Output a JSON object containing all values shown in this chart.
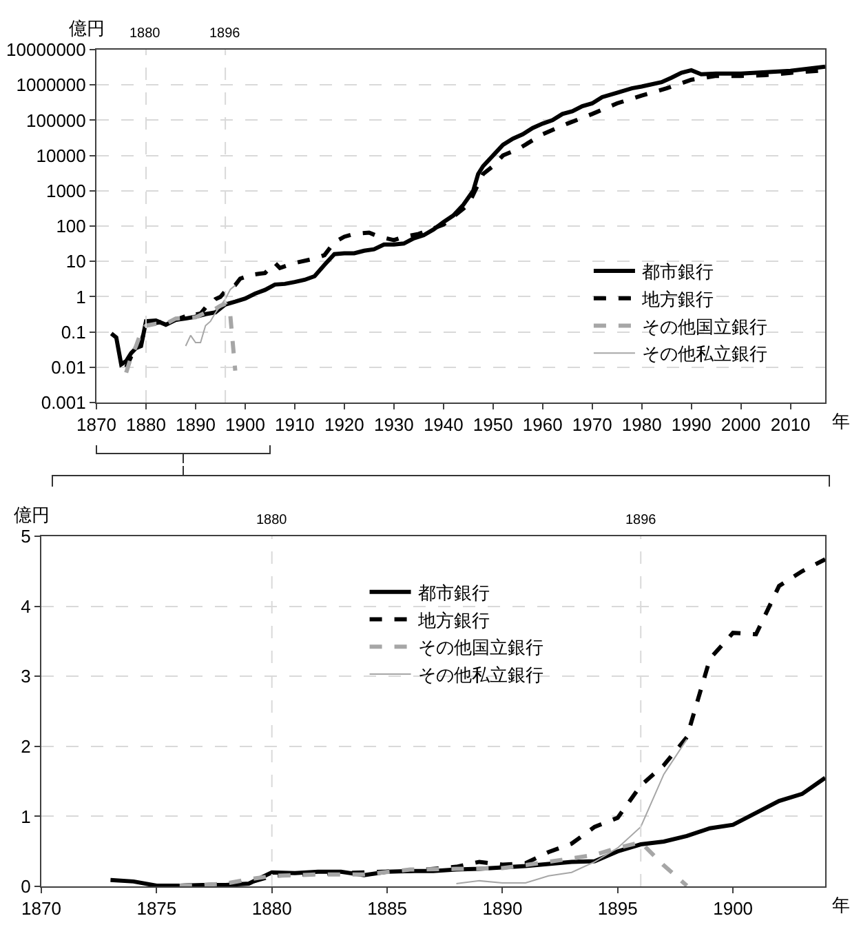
{
  "chart_data": [
    {
      "type": "line",
      "xlabel": "年",
      "ylabel": "億円",
      "log": "y",
      "grid": "y",
      "legend": "bottom right",
      "xlim": [
        1870,
        2017
      ],
      "ylim": [
        0.001,
        10000000
      ],
      "xticks": [
        1870,
        1880,
        1890,
        1900,
        1910,
        1920,
        1930,
        1940,
        1950,
        1960,
        1970,
        1980,
        1990,
        2000,
        2010
      ],
      "yticks": [
        0.001,
        0.01,
        0.1,
        1,
        10,
        100,
        1000,
        10000,
        100000,
        1000000,
        10000000
      ],
      "ref_lines": [
        {
          "axis": "x",
          "value": 1880,
          "label": "1880",
          "color": "#d9d9d9",
          "line_style": "dashed"
        },
        {
          "axis": "x",
          "value": 1896,
          "label": "1896",
          "color": "#d9d9d9",
          "line_style": "dashed"
        }
      ],
      "series": [
        {
          "name": "都市銀行",
          "color": "#000000",
          "line_style": "solid",
          "x": [
            1873,
            1874,
            1875,
            1876,
            1877,
            1878,
            1879,
            1880,
            1882,
            1884,
            1886,
            1888,
            1890,
            1892,
            1894,
            1896,
            1898,
            1900,
            1902,
            1904,
            1906,
            1908,
            1910,
            1912,
            1914,
            1916,
            1918,
            1920,
            1922,
            1924,
            1926,
            1928,
            1930,
            1932,
            1934,
            1936,
            1938,
            1940,
            1942,
            1944,
            1946,
            1947,
            1948,
            1950,
            1952,
            1954,
            1956,
            1958,
            1960,
            1962,
            1964,
            1966,
            1968,
            1970,
            1972,
            1975,
            1978,
            1980,
            1984,
            1986,
            1988,
            1990,
            1992,
            1995,
            2000,
            2005,
            2010,
            2017
          ],
          "values": [
            0.09,
            0.07,
            0.012,
            0.015,
            0.025,
            0.035,
            0.04,
            0.2,
            0.21,
            0.16,
            0.22,
            0.24,
            0.27,
            0.32,
            0.36,
            0.6,
            0.72,
            0.88,
            1.22,
            1.55,
            2.2,
            2.3,
            2.6,
            3,
            3.8,
            8,
            16,
            17,
            17,
            20,
            22,
            30,
            30,
            32,
            45,
            55,
            80,
            130,
            200,
            400,
            1000,
            3000,
            5000,
            10000,
            20000,
            30000,
            40000,
            60000,
            80000,
            100000,
            150000,
            180000,
            250000,
            300000,
            450000,
            600000,
            800000,
            900000,
            1200000,
            1600000,
            2200000,
            2600000,
            2000000,
            2100000,
            2100000,
            2300000,
            2500000,
            3300000
          ]
        },
        {
          "name": "地方銀行",
          "color": "#000000",
          "line_style": "dashed",
          "x": [
            1876,
            1877,
            1878,
            1879,
            1880,
            1882,
            1884,
            1886,
            1888,
            1889,
            1890,
            1891,
            1892,
            1893,
            1894,
            1895,
            1896,
            1897,
            1898,
            1899,
            1900,
            1901,
            1902,
            1903,
            1904,
            1906,
            1907,
            1910,
            1914,
            1916,
            1918,
            1920,
            1922,
            1925,
            1927,
            1930,
            1932,
            1935,
            1940,
            1945,
            1948,
            1950,
            1952,
            1955,
            1960,
            1965,
            1970,
            1975,
            1980,
            1985,
            1990,
            1995,
            2000,
            2005,
            2010,
            2017
          ],
          "values": [
            0.01,
            0.02,
            0.03,
            0.05,
            0.15,
            0.18,
            0.2,
            0.22,
            0.28,
            0.35,
            0.31,
            0.33,
            0.49,
            0.61,
            0.85,
            0.98,
            1.44,
            1.73,
            2.13,
            3.25,
            3.62,
            3.6,
            4.29,
            4.5,
            4.67,
            9,
            6.5,
            9,
            12,
            15,
            35,
            50,
            60,
            65,
            50,
            40,
            50,
            60,
            110,
            400,
            3000,
            5000,
            10000,
            15000,
            40000,
            80000,
            150000,
            300000,
            500000,
            800000,
            1400000,
            1800000,
            1800000,
            1900000,
            2200000,
            2600000
          ]
        },
        {
          "name": "その他国立銀行",
          "color": "#a6a6a6",
          "line_style": "dashed",
          "x": [
            1876,
            1877,
            1878,
            1879,
            1880,
            1882,
            1884,
            1886,
            1888,
            1890,
            1892,
            1894,
            1895,
            1896,
            1897,
            1898
          ],
          "values": [
            0.007,
            0.02,
            0.04,
            0.1,
            0.15,
            0.17,
            0.17,
            0.24,
            0.25,
            0.26,
            0.35,
            0.45,
            0.55,
            0.63,
            0.3,
            0.008
          ]
        },
        {
          "name": "その他私立銀行",
          "color": "#a6a6a6",
          "line_style": "solid",
          "x": [
            1888,
            1889,
            1890,
            1891,
            1892,
            1893,
            1894,
            1895,
            1896,
            1897,
            1898
          ],
          "values": [
            0.04,
            0.08,
            0.05,
            0.05,
            0.15,
            0.2,
            0.35,
            0.55,
            0.85,
            1.6,
            2.1
          ]
        }
      ]
    },
    {
      "type": "line",
      "xlabel": "年",
      "ylabel": "億円",
      "grid": "y",
      "legend": "top",
      "xlim": [
        1870,
        1904
      ],
      "ylim": [
        0,
        5
      ],
      "xticks": [
        1870,
        1875,
        1880,
        1885,
        1890,
        1895,
        1900
      ],
      "yticks": [
        0,
        1,
        2,
        3,
        4,
        5
      ],
      "ref_lines": [
        {
          "axis": "x",
          "value": 1880,
          "label": "1880",
          "color": "#d9d9d9",
          "line_style": "dashed"
        },
        {
          "axis": "x",
          "value": 1896,
          "label": "1896",
          "color": "#d9d9d9",
          "line_style": "dashed"
        }
      ],
      "series": [
        {
          "name": "都市銀行",
          "color": "#000000",
          "line_style": "solid",
          "x": [
            1873,
            1874,
            1875,
            1876,
            1877,
            1878,
            1879,
            1880,
            1881,
            1882,
            1883,
            1884,
            1885,
            1886,
            1887,
            1888,
            1889,
            1890,
            1891,
            1892,
            1893,
            1894,
            1895,
            1896,
            1897,
            1898,
            1899,
            1900,
            1901,
            1902,
            1903,
            1904
          ],
          "values": [
            0.09,
            0.07,
            0.01,
            0.01,
            0.02,
            0.02,
            0.04,
            0.2,
            0.19,
            0.21,
            0.21,
            0.16,
            0.21,
            0.22,
            0.22,
            0.24,
            0.25,
            0.27,
            0.29,
            0.32,
            0.35,
            0.36,
            0.5,
            0.6,
            0.64,
            0.72,
            0.83,
            0.88,
            1.05,
            1.22,
            1.32,
            1.55
          ]
        },
        {
          "name": "地方銀行",
          "color": "#000000",
          "line_style": "dashed",
          "x": [
            1876,
            1877,
            1878,
            1879,
            1880,
            1882,
            1884,
            1886,
            1888,
            1889,
            1890,
            1891,
            1892,
            1893,
            1894,
            1895,
            1896,
            1897,
            1898,
            1899,
            1900,
            1901,
            1902,
            1903,
            1904
          ],
          "values": [
            0.01,
            0.02,
            0.03,
            0.05,
            0.15,
            0.18,
            0.2,
            0.22,
            0.28,
            0.35,
            0.31,
            0.33,
            0.49,
            0.61,
            0.85,
            0.98,
            1.44,
            1.73,
            2.13,
            3.25,
            3.62,
            3.6,
            4.29,
            4.5,
            4.67
          ]
        },
        {
          "name": "その他国立銀行",
          "color": "#a6a6a6",
          "line_style": "dashed",
          "x": [
            1876,
            1877,
            1878,
            1879,
            1880,
            1882,
            1884,
            1886,
            1888,
            1890,
            1892,
            1894,
            1895,
            1896,
            1897,
            1898
          ],
          "values": [
            0.01,
            0.02,
            0.04,
            0.1,
            0.15,
            0.17,
            0.17,
            0.24,
            0.25,
            0.26,
            0.35,
            0.45,
            0.55,
            0.63,
            0.3,
            0.01
          ]
        },
        {
          "name": "その他私立銀行",
          "color": "#a6a6a6",
          "line_style": "solid",
          "x": [
            1888,
            1889,
            1890,
            1891,
            1892,
            1893,
            1894,
            1895,
            1896,
            1897,
            1898
          ],
          "values": [
            0.04,
            0.08,
            0.05,
            0.05,
            0.15,
            0.2,
            0.35,
            0.55,
            0.85,
            1.6,
            2.1
          ]
        }
      ]
    }
  ]
}
